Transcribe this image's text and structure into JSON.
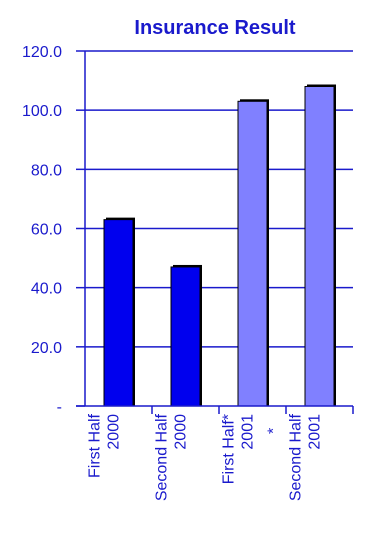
{
  "chart_data": {
    "type": "bar",
    "title": "Insurance Result",
    "xlabel": "",
    "ylabel": "",
    "ylim": [
      0,
      120
    ],
    "yticks": [
      0,
      20,
      40,
      60,
      80,
      100,
      120
    ],
    "ytick_labels": [
      "-",
      "20.0",
      "40.0",
      "60.0",
      "80.0",
      "100.0",
      "120.0"
    ],
    "grid": true,
    "categories": [
      [
        "First Half",
        "2000"
      ],
      [
        "Second Half",
        "2000"
      ],
      [
        "First Half*",
        "2001",
        "*"
      ],
      [
        "Second Half",
        "2001"
      ]
    ],
    "values": [
      63,
      47,
      103,
      108
    ],
    "bar_colors": [
      "#0000ee",
      "#0000ee",
      "#8080ff",
      "#8080ff"
    ]
  },
  "colors": {
    "title": "#1a1acc",
    "axis_text": "#1a1acc",
    "grid": "#1a1acc",
    "axis": "#1a1acc"
  }
}
